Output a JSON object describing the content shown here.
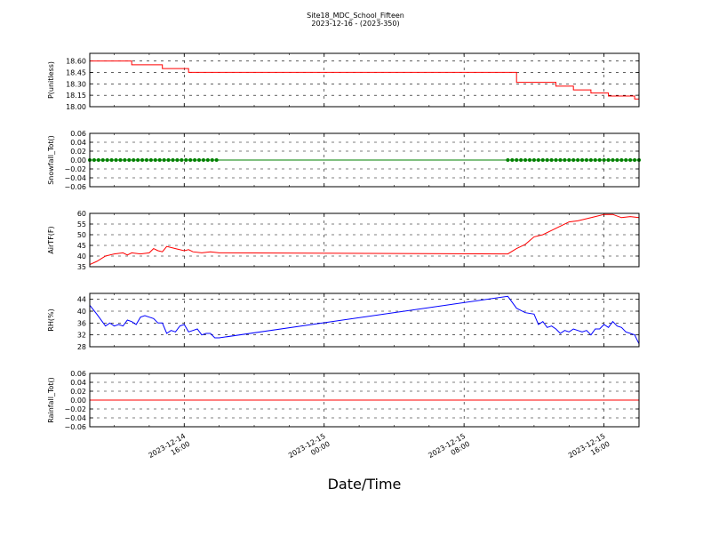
{
  "chart_data": {
    "type": "line",
    "title": "Site18_MDC_School_Fifteen",
    "subtitle": "2023-12-16 - (2023-350)",
    "xlabel": "Date/Time",
    "x_ticks": [
      {
        "date": "2023-12-14",
        "time": "16:00",
        "value": "2023-12-14 16:00"
      },
      {
        "date": "2023-12-15",
        "time": "00:00",
        "value": "2023-12-15 00:00"
      },
      {
        "date": "2023-12-15",
        "time": "08:00",
        "value": "2023-12-15 08:00"
      },
      {
        "date": "2023-12-15",
        "time": "16:00",
        "value": "2023-12-15 16:00"
      }
    ],
    "xlim": [
      "2023-12-14 10:36",
      "2023-12-15 18:00"
    ],
    "grid": true,
    "panels": [
      {
        "ylabel": "P(unitless)",
        "ylim": [
          18.0,
          18.7
        ],
        "yticks": [
          "18.00",
          "18.15",
          "18.30",
          "18.45",
          "18.60"
        ],
        "ytick_values": [
          18.0,
          18.15,
          18.3,
          18.45,
          18.6
        ],
        "color": "#ff0000",
        "step": true,
        "series": [
          {
            "x": [
              "2023-12-14 10:36",
              "2023-12-14 11:30",
              "2023-12-14 12:45",
              "2023-12-14 13:00",
              "2023-12-14 14:30",
              "2023-12-14 14:45",
              "2023-12-14 16:00",
              "2023-12-14 16:15",
              "2023-12-14 18:00",
              "2023-12-15 11:00",
              "2023-12-15 13:00",
              "2023-12-15 13:15",
              "2023-12-15 14:00",
              "2023-12-15 14:15",
              "2023-12-15 15:00",
              "2023-12-15 15:15",
              "2023-12-15 16:00",
              "2023-12-15 16:15",
              "2023-12-15 17:30",
              "2023-12-15 17:45",
              "2023-12-15 18:00"
            ],
            "values": [
              18.6,
              18.6,
              18.6,
              18.55,
              18.55,
              18.5,
              18.5,
              18.45,
              18.45,
              18.32,
              18.32,
              18.27,
              18.27,
              18.22,
              18.22,
              18.18,
              18.18,
              18.14,
              18.14,
              18.1,
              18.08
            ]
          }
        ]
      },
      {
        "ylabel": "Snowfall_Tot()",
        "ylim": [
          -0.06,
          0.06
        ],
        "yticks": [
          "−0.06",
          "−0.04",
          "−0.02",
          "0.00",
          "0.02",
          "0.04",
          "0.06"
        ],
        "ytick_values": [
          -0.06,
          -0.04,
          -0.02,
          0.0,
          0.02,
          0.04,
          0.06
        ],
        "color": "#008000",
        "markers": true,
        "series": [
          {
            "segments": [
              {
                "start": "2023-12-14 10:36",
                "end": "2023-12-14 18:00",
                "step_minutes": 15
              },
              {
                "start": "2023-12-15 10:30",
                "end": "2023-12-15 18:00",
                "step_minutes": 15
              }
            ],
            "value": 0.0
          }
        ]
      },
      {
        "ylabel": "AirTF(F)",
        "ylim": [
          35,
          60
        ],
        "yticks": [
          "35",
          "40",
          "45",
          "50",
          "55",
          "60"
        ],
        "ytick_values": [
          35,
          40,
          45,
          50,
          55,
          60
        ],
        "color": "#ff0000",
        "series": [
          {
            "x": [
              "2023-12-14 10:36",
              "2023-12-14 11:00",
              "2023-12-14 11:30",
              "2023-12-14 12:00",
              "2023-12-14 12:30",
              "2023-12-14 12:45",
              "2023-12-14 13:00",
              "2023-12-14 13:30",
              "2023-12-14 14:00",
              "2023-12-14 14:15",
              "2023-12-14 14:30",
              "2023-12-14 14:45",
              "2023-12-14 15:00",
              "2023-12-14 15:30",
              "2023-12-14 16:00",
              "2023-12-14 16:15",
              "2023-12-14 16:30",
              "2023-12-14 17:00",
              "2023-12-14 17:30",
              "2023-12-14 18:00",
              "2023-12-15 10:30",
              "2023-12-15 11:00",
              "2023-12-15 11:30",
              "2023-12-15 12:00",
              "2023-12-15 12:30",
              "2023-12-15 13:00",
              "2023-12-15 13:30",
              "2023-12-15 14:00",
              "2023-12-15 14:30",
              "2023-12-15 15:00",
              "2023-12-15 15:30",
              "2023-12-15 16:00",
              "2023-12-15 16:30",
              "2023-12-15 17:00",
              "2023-12-15 17:30",
              "2023-12-15 18:00"
            ],
            "values": [
              36,
              37.5,
              40,
              41,
              41.5,
              40.5,
              41.5,
              41,
              41.5,
              43.5,
              42.5,
              42,
              44.5,
              43.5,
              42.5,
              43,
              42,
              41.5,
              42,
              41.5,
              41,
              43.5,
              45.5,
              49,
              50,
              52,
              54,
              56,
              56.5,
              57.5,
              58.5,
              59.5,
              59.5,
              58,
              58.5,
              58
            ]
          }
        ]
      },
      {
        "ylabel": "RH(%)",
        "ylim": [
          28,
          46
        ],
        "yticks": [
          "28",
          "32",
          "36",
          "40",
          "44"
        ],
        "ytick_values": [
          28,
          32,
          36,
          40,
          44
        ],
        "color": "#0000ff",
        "series": [
          {
            "x": [
              "2023-12-14 10:36",
              "2023-12-14 11:00",
              "2023-12-14 11:30",
              "2023-12-14 11:45",
              "2023-12-14 12:00",
              "2023-12-14 12:15",
              "2023-12-14 12:30",
              "2023-12-14 12:45",
              "2023-12-14 13:00",
              "2023-12-14 13:15",
              "2023-12-14 13:30",
              "2023-12-14 13:45",
              "2023-12-14 14:00",
              "2023-12-14 14:15",
              "2023-12-14 14:30",
              "2023-12-14 14:45",
              "2023-12-14 15:00",
              "2023-12-14 15:15",
              "2023-12-14 15:30",
              "2023-12-14 15:45",
              "2023-12-14 16:00",
              "2023-12-14 16:15",
              "2023-12-14 16:30",
              "2023-12-14 16:45",
              "2023-12-14 17:00",
              "2023-12-14 17:15",
              "2023-12-14 17:30",
              "2023-12-14 17:45",
              "2023-12-14 18:00",
              "2023-12-15 10:30",
              "2023-12-15 11:00",
              "2023-12-15 11:30",
              "2023-12-15 12:00",
              "2023-12-15 12:15",
              "2023-12-15 12:30",
              "2023-12-15 12:45",
              "2023-12-15 13:00",
              "2023-12-15 13:15",
              "2023-12-15 13:30",
              "2023-12-15 13:45",
              "2023-12-15 14:00",
              "2023-12-15 14:15",
              "2023-12-15 14:30",
              "2023-12-15 14:45",
              "2023-12-15 15:00",
              "2023-12-15 15:15",
              "2023-12-15 15:30",
              "2023-12-15 15:45",
              "2023-12-15 16:00",
              "2023-12-15 16:15",
              "2023-12-15 16:30",
              "2023-12-15 16:45",
              "2023-12-15 17:00",
              "2023-12-15 17:15",
              "2023-12-15 17:30",
              "2023-12-15 17:45",
              "2023-12-15 18:00"
            ],
            "values": [
              42,
              39,
              35,
              36,
              35,
              35.5,
              35,
              37,
              36.5,
              35.5,
              38,
              38.5,
              38,
              37.5,
              36,
              36,
              32.5,
              33.5,
              33,
              35,
              35.5,
              33,
              33.5,
              34,
              32,
              32.5,
              32.5,
              31,
              31,
              45,
              41,
              39.5,
              39,
              35.5,
              36.5,
              34.5,
              35,
              34,
              32.5,
              33.5,
              33,
              34,
              33.5,
              33,
              33.5,
              32,
              34,
              34,
              35.5,
              34.5,
              36.5,
              35,
              34.5,
              33,
              32.5,
              32,
              29
            ]
          }
        ]
      },
      {
        "ylabel": "Rainfall_Tot()",
        "ylim": [
          -0.06,
          0.06
        ],
        "yticks": [
          "−0.06",
          "−0.04",
          "−0.02",
          "0.00",
          "0.02",
          "0.04",
          "0.06"
        ],
        "ytick_values": [
          -0.06,
          -0.04,
          -0.02,
          0.0,
          0.02,
          0.04,
          0.06
        ],
        "color": "#ff0000",
        "series": [
          {
            "x": [
              "2023-12-14 10:36",
              "2023-12-15 18:00"
            ],
            "values": [
              0.0,
              0.0
            ]
          }
        ]
      }
    ]
  }
}
